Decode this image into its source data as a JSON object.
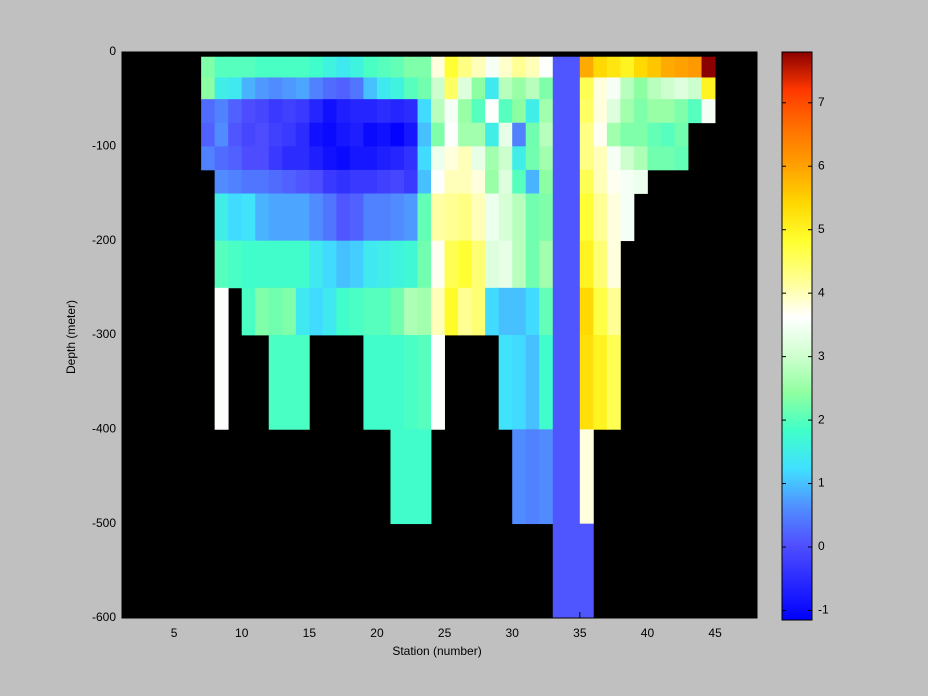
{
  "chart_data": {
    "type": "heatmap",
    "xlabel": "Station (number)",
    "ylabel": "Depth (meter)",
    "xlim": [
      1.15,
      48.1
    ],
    "ylim": [
      -600,
      0
    ],
    "xticks": [
      5,
      10,
      15,
      20,
      25,
      30,
      35,
      40,
      45
    ],
    "yticks": [
      0,
      -100,
      -200,
      -300,
      -400,
      -500,
      -600
    ],
    "clim": [
      -1.15,
      7.8
    ],
    "cticks": [
      -1,
      0,
      1,
      2,
      3,
      4,
      5,
      6,
      7
    ],
    "colormap": [
      "#0000ff",
      "#2828ff",
      "#5050ff",
      "#5090ff",
      "#40e0ff",
      "#40ffc8",
      "#90ffa0",
      "#d0ffd0",
      "#ffffff",
      "#ffff90",
      "#ffff30",
      "#ffd800",
      "#ffa000",
      "#ff7000",
      "#ff3800",
      "#8b0000"
    ],
    "background": "#000000",
    "xbins": [
      7,
      8,
      9,
      10,
      11,
      12,
      13,
      14,
      15,
      16,
      17,
      18,
      19,
      20,
      21,
      22,
      23,
      24,
      25,
      26,
      27,
      28,
      29,
      30,
      31,
      32,
      33,
      34,
      35,
      36,
      37,
      38,
      39,
      40,
      41,
      42,
      43,
      44,
      45
    ],
    "ybins": [
      -5,
      -27,
      -50,
      -75,
      -100,
      -125,
      -150,
      -200,
      -250,
      -300,
      -400,
      -500,
      -600
    ],
    "values": [
      [
        2.3,
        2.0,
        2.0,
        2.0,
        1.9,
        1.9,
        1.9,
        1.9,
        1.8,
        1.6,
        1.4,
        1.6,
        1.9,
        2.0,
        2.1,
        2.3,
        2.3,
        3.8,
        4.8,
        4.3,
        4.0,
        3.5,
        3.9,
        4.2,
        4.0,
        3.6,
        0.1,
        0.1,
        5.9,
        5.4,
        5.2,
        5.0,
        5.4,
        5.6,
        5.9,
        6.0,
        6.1,
        7.8
      ],
      [
        2.4,
        1.5,
        1.4,
        0.9,
        0.7,
        0.6,
        0.7,
        0.8,
        0.5,
        0.3,
        0.2,
        0.4,
        1.0,
        1.4,
        1.6,
        2.0,
        2.2,
        3.0,
        4.5,
        3.2,
        2.4,
        1.4,
        2.8,
        2.5,
        2.8,
        2.3,
        0.1,
        0.1,
        4.6,
        3.8,
        3.5,
        2.8,
        2.4,
        2.8,
        3.0,
        3.2,
        3.0,
        5.0
      ],
      [
        0.3,
        0.5,
        0.2,
        0.0,
        -0.1,
        -0.3,
        -0.2,
        -0.3,
        -0.6,
        -0.9,
        -0.7,
        -0.6,
        -0.6,
        -0.5,
        -0.6,
        -0.5,
        1.2,
        2.8,
        3.5,
        2.5,
        2.0,
        3.6,
        2.0,
        2.4,
        1.5,
        2.6,
        0.1,
        0.1,
        4.5,
        3.8,
        3.2,
        2.6,
        2.3,
        2.5,
        2.5,
        2.3,
        2.0,
        3.5
      ],
      [
        0.2,
        0.6,
        0.1,
        -0.1,
        0.0,
        -0.2,
        -0.3,
        -0.5,
        -0.9,
        -1.0,
        -0.8,
        -0.7,
        -1.0,
        -0.9,
        -1.1,
        -0.8,
        1.0,
        2.3,
        3.6,
        2.6,
        2.6,
        1.5,
        3.3,
        0.5,
        2.2,
        2.8,
        0.1,
        0.1,
        4.3,
        3.7,
        2.6,
        2.3,
        2.3,
        2.1,
        2.0,
        2.2,
        null,
        null
      ],
      [
        0.5,
        0.3,
        0.2,
        0.0,
        0.0,
        -0.3,
        -0.5,
        -0.5,
        -0.7,
        -0.9,
        -1.0,
        -0.8,
        -0.8,
        -0.7,
        -0.6,
        -0.4,
        1.2,
        3.4,
        3.8,
        4.0,
        3.3,
        2.6,
        3.0,
        1.5,
        2.2,
        2.6,
        0.1,
        0.1,
        4.3,
        4.0,
        3.5,
        3.0,
        2.7,
        2.2,
        2.2,
        2.1,
        null,
        null
      ],
      [
        null,
        0.6,
        0.5,
        0.4,
        0.4,
        0.3,
        0.2,
        0.1,
        0.0,
        -0.3,
        -0.4,
        -0.3,
        -0.3,
        -0.2,
        -0.1,
        -0.3,
        1.0,
        3.6,
        4.0,
        4.0,
        3.8,
        2.5,
        3.2,
        2.0,
        0.9,
        2.4,
        0.1,
        0.1,
        4.6,
        4.0,
        3.7,
        3.5,
        3.4,
        null,
        null,
        null,
        null,
        null
      ],
      [
        null,
        1.5,
        1.2,
        1.3,
        0.9,
        0.8,
        0.8,
        0.8,
        0.6,
        0.4,
        0.1,
        0.2,
        0.5,
        0.5,
        0.6,
        0.7,
        2.1,
        4.1,
        4.2,
        4.3,
        4.0,
        3.4,
        3.1,
        2.8,
        2.2,
        2.3,
        0.1,
        0.1,
        4.8,
        4.2,
        3.8,
        3.5,
        null,
        null,
        null,
        null,
        null,
        null
      ],
      [
        null,
        2.0,
        1.9,
        1.8,
        1.8,
        1.8,
        1.8,
        1.8,
        1.4,
        1.2,
        1.0,
        1.1,
        1.4,
        1.5,
        1.6,
        1.7,
        2.2,
        3.7,
        4.6,
        4.8,
        4.4,
        3.2,
        3.3,
        2.8,
        2.2,
        2.6,
        0.1,
        0.1,
        5.0,
        4.4,
        3.8,
        null,
        null,
        null,
        null,
        null,
        null,
        null
      ],
      [
        null,
        3.6,
        null,
        1.9,
        2.3,
        2.2,
        2.3,
        1.4,
        1.2,
        1.4,
        1.8,
        1.9,
        2.0,
        2.0,
        2.2,
        2.7,
        2.6,
        4.0,
        4.9,
        4.2,
        4.4,
        1.2,
        1.0,
        1.0,
        1.2,
        2.1,
        0.1,
        0.1,
        5.4,
        4.7,
        4.2,
        null,
        null,
        null,
        null,
        null,
        null,
        null
      ],
      [
        null,
        3.6,
        null,
        null,
        null,
        1.9,
        1.9,
        1.9,
        null,
        null,
        null,
        null,
        1.8,
        1.8,
        1.8,
        1.9,
        2.0,
        3.6,
        null,
        null,
        null,
        null,
        1.3,
        1.2,
        1.0,
        1.8,
        0.1,
        0.1,
        5.3,
        5.0,
        4.6,
        null,
        null,
        null,
        null,
        null,
        null,
        null
      ],
      [
        null,
        null,
        null,
        null,
        null,
        null,
        null,
        null,
        null,
        null,
        null,
        null,
        null,
        null,
        1.8,
        1.8,
        1.8,
        null,
        null,
        null,
        null,
        null,
        null,
        0.6,
        0.5,
        0.6,
        0.1,
        0.1,
        3.8,
        null,
        null,
        null,
        null,
        null,
        null,
        null,
        null,
        null
      ],
      [
        null,
        null,
        null,
        null,
        null,
        null,
        null,
        null,
        null,
        null,
        null,
        null,
        null,
        null,
        null,
        null,
        null,
        null,
        null,
        null,
        null,
        null,
        null,
        null,
        null,
        null,
        0.1,
        0.1,
        0.1,
        null,
        null,
        null,
        null,
        null,
        null,
        null,
        null,
        null
      ]
    ]
  }
}
